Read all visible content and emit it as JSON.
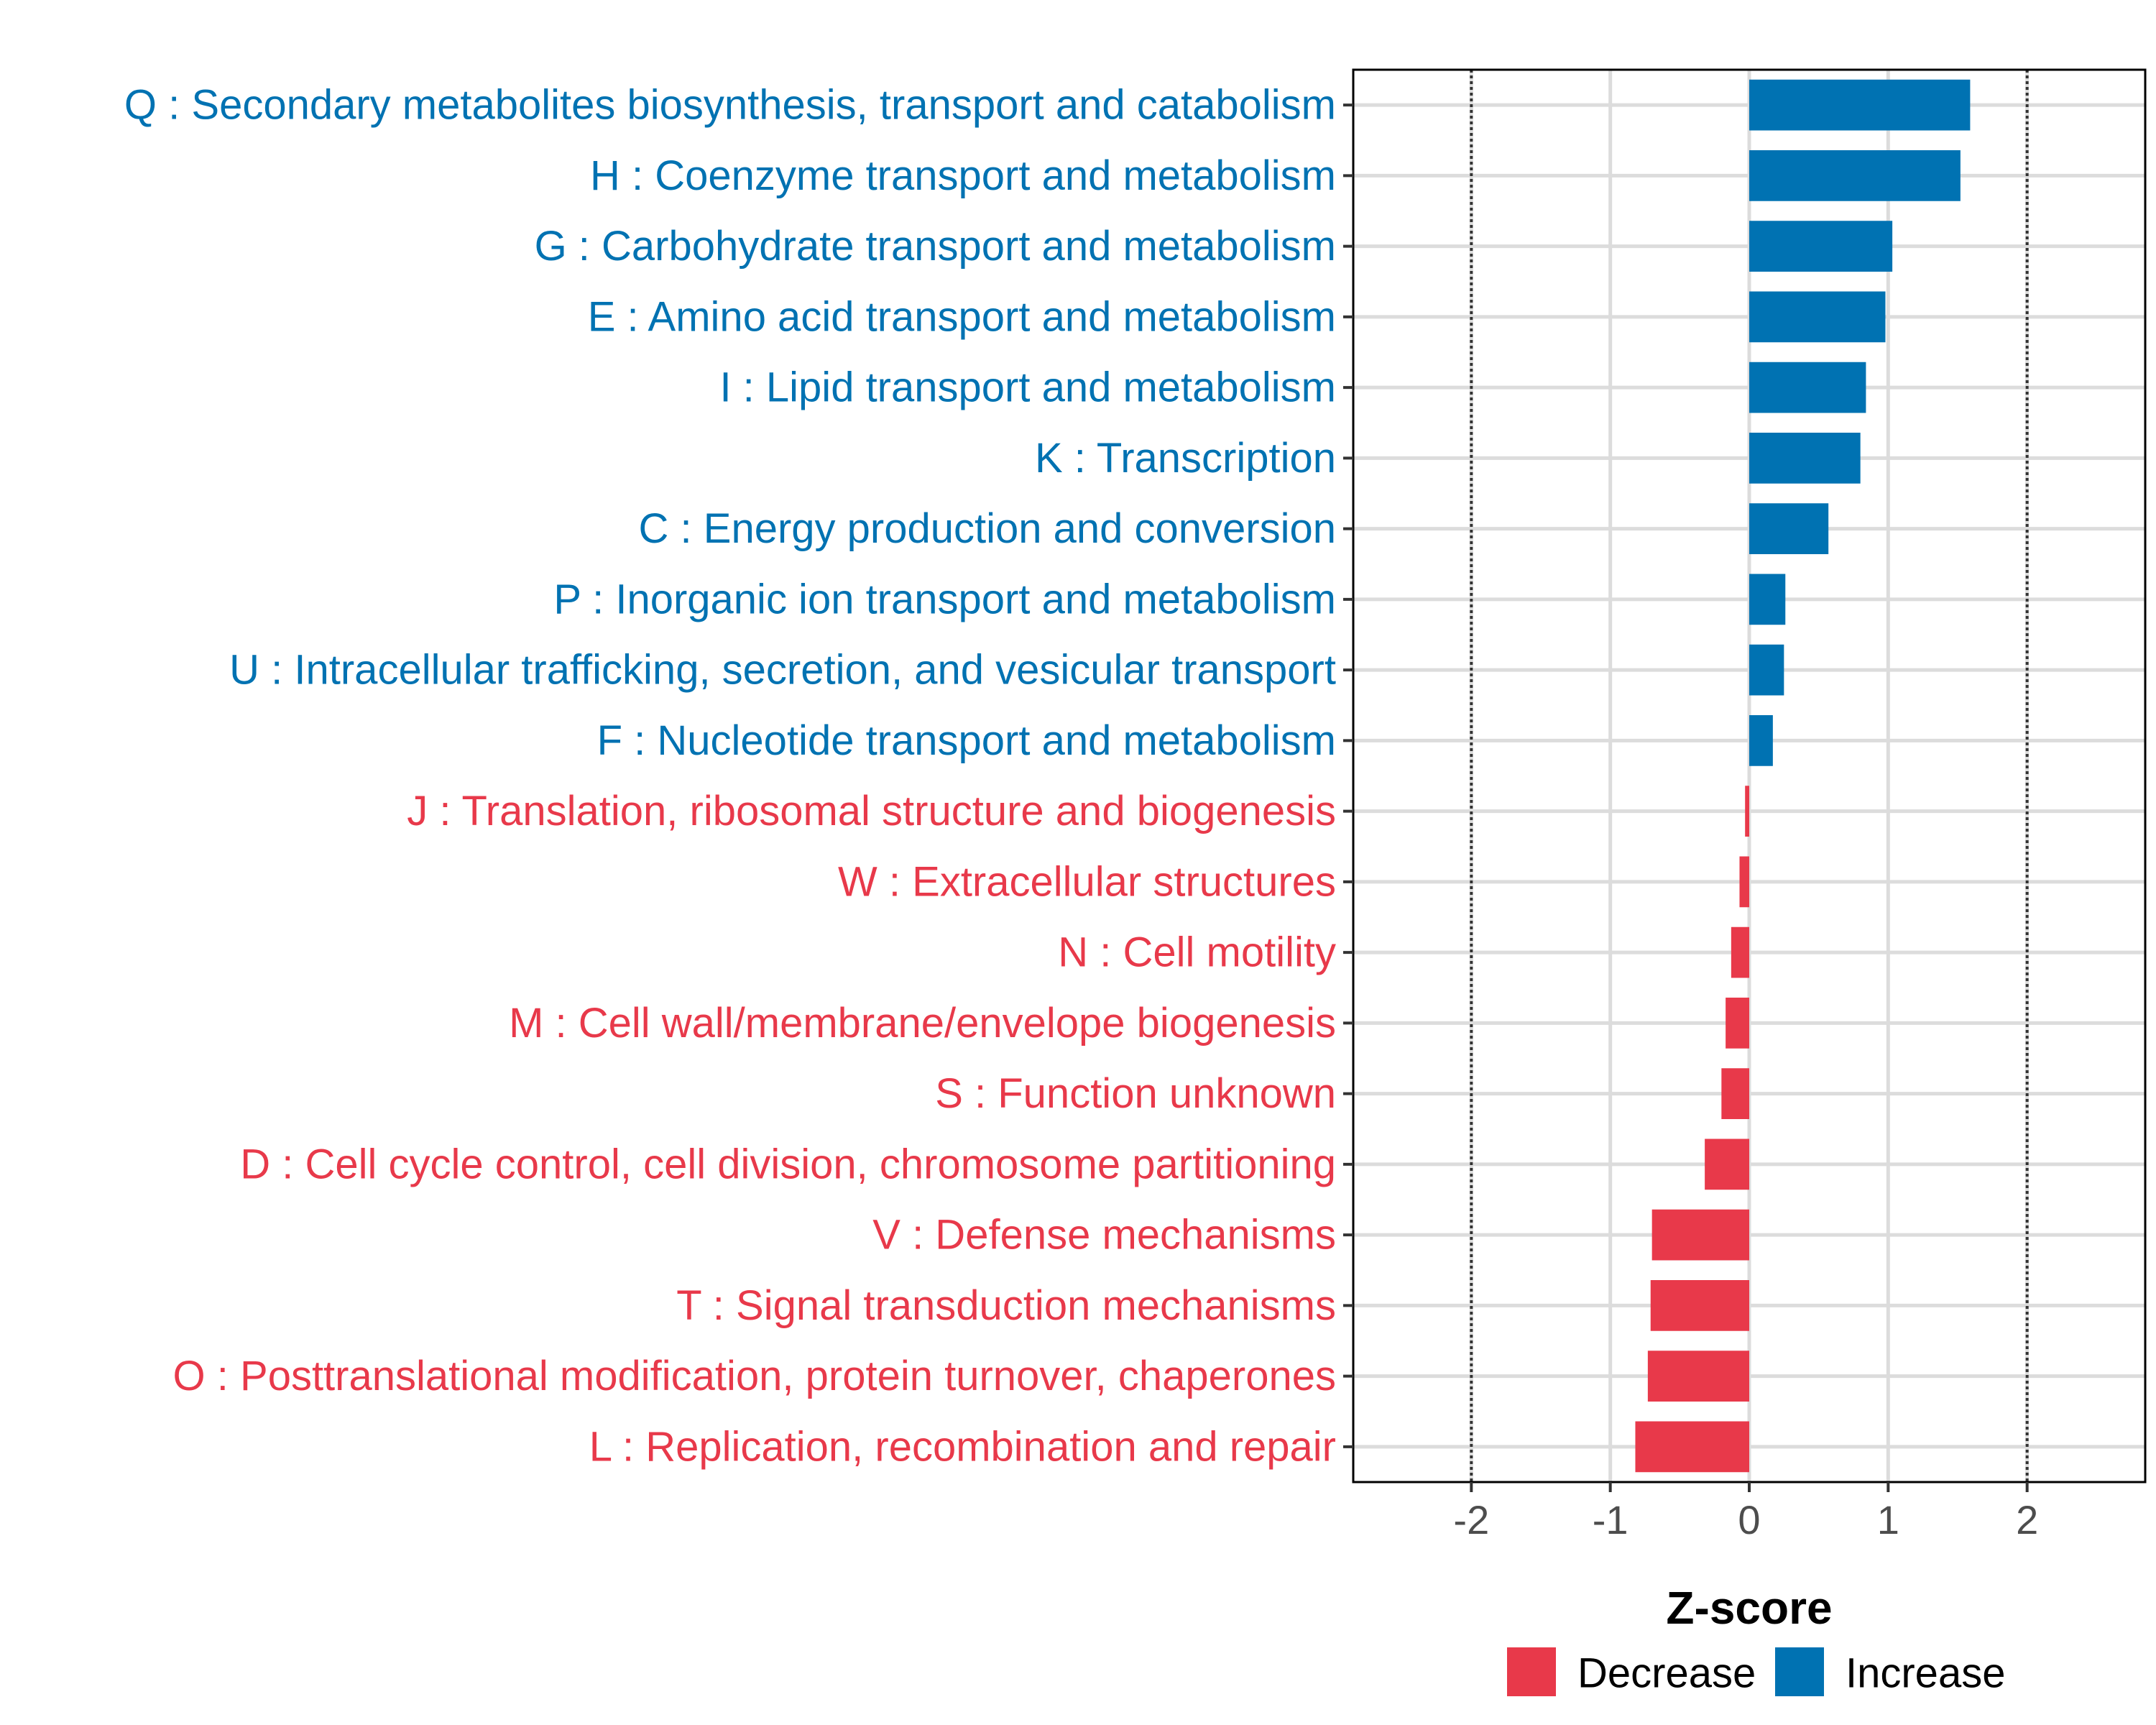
{
  "chart_data": {
    "type": "bar",
    "orientation": "horizontal",
    "title": "",
    "xlabel": "Z-score",
    "ylabel": "",
    "xlim": [
      -2.85,
      2.85
    ],
    "x_ticks": [
      -2,
      -1,
      0,
      1,
      2
    ],
    "x_tick_labels": [
      "-2",
      "-1",
      "0",
      "1",
      "2"
    ],
    "reference_lines": [
      -2,
      2
    ],
    "grid": true,
    "legend_position": "bottom",
    "colors": {
      "Increase": "#0072B2",
      "Decrease": "#E8394A"
    },
    "legend": [
      {
        "label": "Decrease",
        "group": "Decrease"
      },
      {
        "label": "Increase",
        "group": "Increase"
      }
    ],
    "categories": [
      "Q : Secondary metabolites biosynthesis, transport and catabolism",
      "H : Coenzyme transport and metabolism",
      "G : Carbohydrate transport and metabolism",
      "E : Amino acid transport and metabolism",
      "I : Lipid transport and metabolism",
      "K : Transcription",
      "C : Energy production and conversion",
      "P : Inorganic ion transport and metabolism",
      "U : Intracellular trafficking, secretion, and vesicular transport",
      "F : Nucleotide transport and metabolism",
      "J : Translation, ribosomal structure and biogenesis",
      "W : Extracellular structures",
      "N : Cell motility",
      "M : Cell wall/membrane/envelope biogenesis",
      "S : Function unknown",
      "D : Cell cycle control, cell division, chromosome partitioning",
      "V : Defense mechanisms",
      "T : Signal transduction mechanisms",
      "O : Posttranslational modification, protein turnover, chaperones",
      "L : Replication, recombination and repair"
    ],
    "values": [
      1.59,
      1.52,
      1.03,
      0.98,
      0.84,
      0.8,
      0.57,
      0.26,
      0.25,
      0.17,
      -0.03,
      -0.07,
      -0.13,
      -0.17,
      -0.2,
      -0.32,
      -0.7,
      -0.71,
      -0.73,
      -0.82
    ],
    "groups": [
      "Increase",
      "Increase",
      "Increase",
      "Increase",
      "Increase",
      "Increase",
      "Increase",
      "Increase",
      "Increase",
      "Increase",
      "Decrease",
      "Decrease",
      "Decrease",
      "Decrease",
      "Decrease",
      "Decrease",
      "Decrease",
      "Decrease",
      "Decrease",
      "Decrease"
    ]
  }
}
